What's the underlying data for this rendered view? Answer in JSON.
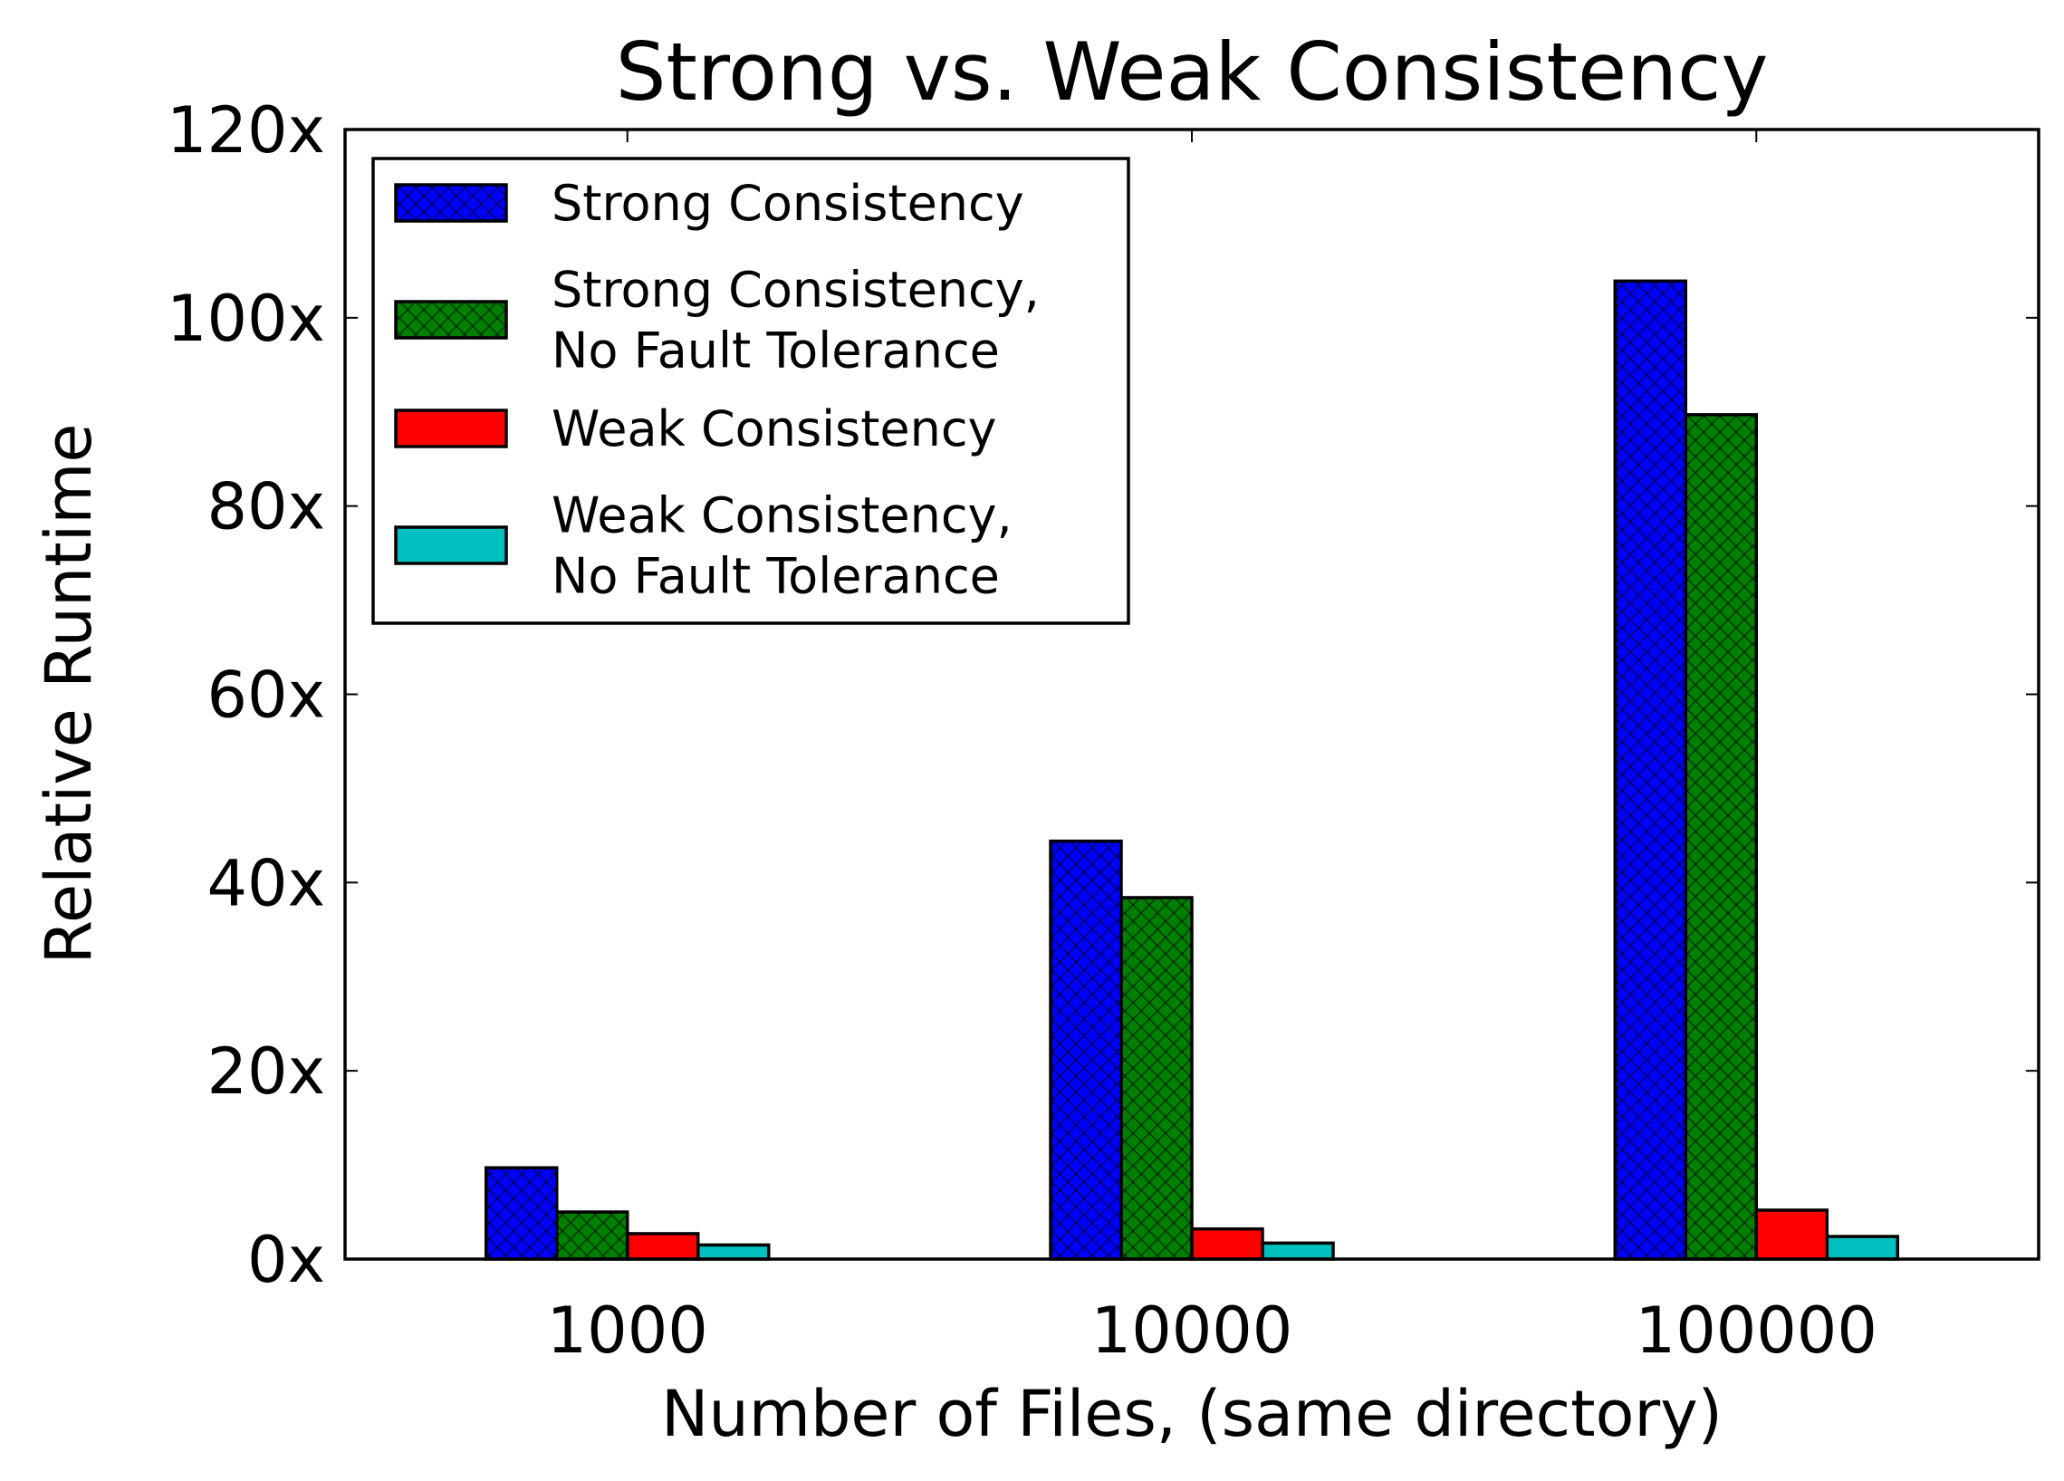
{
  "chart_data": {
    "type": "bar",
    "title": "Strong vs. Weak Consistency",
    "xlabel": "Number of Files, (same directory)",
    "ylabel": "Relative Runtime",
    "categories": [
      "1000",
      "10000",
      "100000"
    ],
    "ylim": [
      0,
      120
    ],
    "yticks": [
      0,
      20,
      40,
      60,
      80,
      100,
      120
    ],
    "ytick_suffix": "x",
    "grid": false,
    "legend_position": "top-left",
    "series": [
      {
        "name": "Strong Consistency",
        "legend_lines": [
          "Strong Consistency"
        ],
        "color": "#0000ff",
        "hatch": true,
        "values": [
          9.7,
          44.4,
          103.9
        ]
      },
      {
        "name": "Strong Consistency, No Fault Tolerance",
        "legend_lines": [
          "Strong Consistency,",
          "No Fault Tolerance"
        ],
        "color": "#008000",
        "hatch": true,
        "values": [
          5.0,
          38.4,
          89.7
        ]
      },
      {
        "name": "Weak Consistency",
        "legend_lines": [
          "Weak Consistency"
        ],
        "color": "#ff0000",
        "hatch": false,
        "values": [
          2.7,
          3.2,
          5.2
        ]
      },
      {
        "name": "Weak Consistency, No Fault Tolerance",
        "legend_lines": [
          "Weak Consistency,",
          "No Fault Tolerance"
        ],
        "color": "#00bfbf",
        "hatch": false,
        "values": [
          1.5,
          1.7,
          2.4
        ]
      }
    ]
  }
}
